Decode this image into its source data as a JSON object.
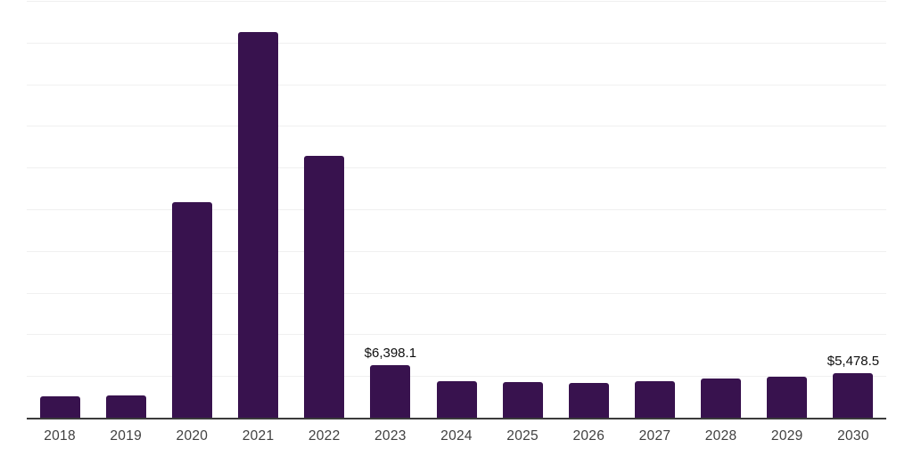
{
  "chart_data": {
    "type": "bar",
    "categories": [
      "2018",
      "2019",
      "2020",
      "2021",
      "2022",
      "2023",
      "2024",
      "2025",
      "2026",
      "2027",
      "2028",
      "2029",
      "2030"
    ],
    "values": [
      2670,
      2770,
      26000,
      46360,
      31480,
      6398.1,
      4450,
      4375,
      4270,
      4450,
      4800,
      5050,
      5478.5
    ],
    "data_labels": [
      "",
      "",
      "",
      "",
      "",
      "$6,398.1",
      "",
      "",
      "",
      "",
      "",
      "",
      "$5,478.5"
    ],
    "title": "",
    "xlabel": "",
    "ylabel": "",
    "ylim": [
      0,
      50000
    ],
    "gridline_interval": 5000,
    "grid_visible": true,
    "legend_position": "none",
    "colors": {
      "bar": "#38124E",
      "axis_line": "#3B3B3B",
      "gridline": "#F0F0F0",
      "tick_label": "#3F3F3F",
      "data_label": "#0E0E0E",
      "background": "#FFFFFF"
    }
  }
}
